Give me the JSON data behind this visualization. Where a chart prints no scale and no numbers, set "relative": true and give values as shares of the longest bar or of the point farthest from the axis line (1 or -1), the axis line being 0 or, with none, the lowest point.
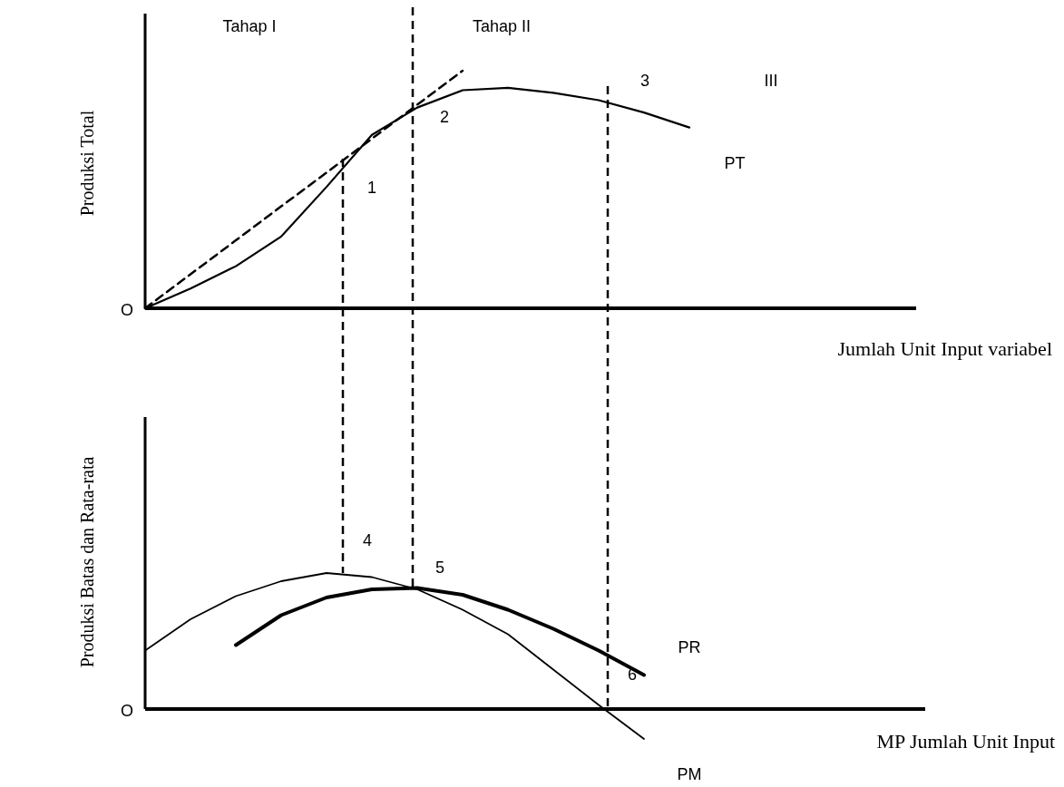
{
  "chart_data": [
    {
      "type": "line",
      "relative": true,
      "ylabel": "Produksi Total",
      "xlabel": "Jumlah Unit Input variabel",
      "categories": [
        null,
        null,
        null,
        null,
        null,
        null,
        null,
        null,
        null,
        null,
        null,
        null,
        null,
        null,
        null,
        null,
        null,
        null
      ],
      "series": [
        {
          "name": "PT",
          "color": "#000000",
          "line_style": "solid",
          "values": [
            0,
            0.083,
            0.177,
            0.302,
            0.511,
            0.73,
            0.845,
            0.918,
            0.928,
            0.907,
            0.876,
            0.824,
            0.761,
            null,
            null,
            null,
            null,
            null
          ]
        },
        {
          "color": "#000000",
          "line_style": "dashed",
          "values": [
            0,
            0.143,
            0.286,
            0.429,
            0.571,
            0.714,
            0.857,
            1,
            null,
            null,
            null,
            null,
            null,
            null,
            null,
            null,
            null,
            null
          ]
        }
      ],
      "annotations": [
        "O",
        "Tahap I",
        "Tahap II",
        "1",
        "2",
        "3",
        "III"
      ]
    },
    {
      "type": "line",
      "relative": true,
      "ylabel": "Produksi Batas dan Rata-rata",
      "xlabel": "MP Jumlah Unit Input",
      "categories": [
        null,
        null,
        null,
        null,
        null,
        null,
        null,
        null,
        null,
        null,
        null,
        null,
        null,
        null,
        null,
        null,
        null,
        null
      ],
      "series": [
        {
          "name": "PM",
          "color": "#000000",
          "line_style": "solid",
          "values": [
            0.43,
            0.66,
            0.83,
            0.94,
            1,
            0.97,
            0.88,
            0.73,
            0.55,
            0.29,
            0.03,
            -0.22,
            null,
            null,
            null,
            null,
            null,
            null
          ]
        },
        {
          "name": "PR",
          "color": "#000000",
          "line_style": "solid",
          "values": [
            null,
            null,
            0.47,
            0.69,
            0.82,
            0.88,
            0.89,
            0.84,
            0.73,
            0.59,
            0.43,
            0.25,
            null,
            null,
            null,
            null,
            null,
            null
          ]
        }
      ],
      "annotations": [
        "O",
        "4",
        "5",
        "6"
      ]
    }
  ]
}
